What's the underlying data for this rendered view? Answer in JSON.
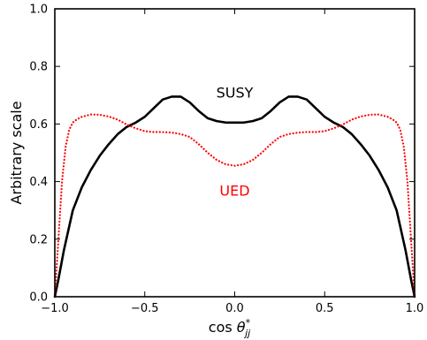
{
  "chart_data": {
    "type": "line",
    "title": "",
    "xlabel_prefix": "cos ",
    "xlabel_symbol": "θ",
    "xlabel_sup": "*",
    "xlabel_sub": "jj",
    "ylabel": "Arbitrary scale",
    "xlim": [
      -1.0,
      1.0
    ],
    "ylim": [
      0.0,
      1.0
    ],
    "x_ticks": [
      -1.0,
      -0.5,
      0.0,
      0.5,
      1.0
    ],
    "y_ticks": [
      0.0,
      0.2,
      0.4,
      0.6,
      0.8,
      1.0
    ],
    "x_tick_labels": [
      "−1.0",
      "−0.5",
      "0.0",
      "0.5",
      "1.0"
    ],
    "y_tick_labels": [
      "0.0",
      "0.2",
      "0.4",
      "0.6",
      "0.8",
      "1.0"
    ],
    "grid": false,
    "annotations": [
      {
        "text": "SUSY",
        "x": 0.0,
        "y": 0.71,
        "color": "#000000"
      },
      {
        "text": "UED",
        "x": 0.0,
        "y": 0.37,
        "color": "#ff0000"
      }
    ],
    "series": [
      {
        "color": "#000000",
        "line_style": "solid",
        "x": [
          -1.0,
          -0.98,
          -0.95,
          -0.9,
          -0.85,
          -0.8,
          -0.75,
          -0.7,
          -0.65,
          -0.6,
          -0.55,
          -0.5,
          -0.45,
          -0.4,
          -0.35,
          -0.3,
          -0.25,
          -0.2,
          -0.15,
          -0.1,
          -0.05,
          0.0,
          0.05,
          0.1,
          0.15,
          0.2,
          0.25,
          0.3,
          0.35,
          0.4,
          0.45,
          0.5,
          0.55,
          0.6,
          0.65,
          0.7,
          0.75,
          0.8,
          0.85,
          0.9,
          0.95,
          0.98,
          1.0
        ],
        "y": [
          0.0,
          0.06,
          0.16,
          0.3,
          0.38,
          0.44,
          0.49,
          0.53,
          0.565,
          0.59,
          0.605,
          0.625,
          0.655,
          0.685,
          0.695,
          0.695,
          0.675,
          0.645,
          0.62,
          0.61,
          0.605,
          0.605,
          0.605,
          0.61,
          0.62,
          0.645,
          0.675,
          0.695,
          0.695,
          0.685,
          0.655,
          0.625,
          0.605,
          0.59,
          0.565,
          0.53,
          0.49,
          0.44,
          0.38,
          0.3,
          0.16,
          0.06,
          0.0
        ]
      },
      {
        "color": "#ff0000",
        "line_style": "dotted",
        "x": [
          -1.0,
          -0.98,
          -0.96,
          -0.94,
          -0.92,
          -0.9,
          -0.88,
          -0.85,
          -0.8,
          -0.75,
          -0.7,
          -0.65,
          -0.6,
          -0.55,
          -0.5,
          -0.45,
          -0.4,
          -0.35,
          -0.3,
          -0.25,
          -0.2,
          -0.15,
          -0.1,
          -0.05,
          0.0,
          0.05,
          0.1,
          0.15,
          0.2,
          0.25,
          0.3,
          0.35,
          0.4,
          0.45,
          0.5,
          0.55,
          0.6,
          0.65,
          0.7,
          0.75,
          0.8,
          0.85,
          0.88,
          0.9,
          0.92,
          0.94,
          0.96,
          0.98,
          1.0
        ],
        "y": [
          0.0,
          0.2,
          0.4,
          0.52,
          0.58,
          0.605,
          0.615,
          0.625,
          0.633,
          0.632,
          0.626,
          0.615,
          0.598,
          0.585,
          0.575,
          0.572,
          0.572,
          0.57,
          0.565,
          0.555,
          0.53,
          0.5,
          0.475,
          0.46,
          0.455,
          0.46,
          0.475,
          0.5,
          0.53,
          0.555,
          0.565,
          0.57,
          0.572,
          0.572,
          0.575,
          0.585,
          0.598,
          0.615,
          0.626,
          0.632,
          0.633,
          0.625,
          0.615,
          0.605,
          0.58,
          0.52,
          0.4,
          0.2,
          0.0
        ]
      }
    ]
  }
}
